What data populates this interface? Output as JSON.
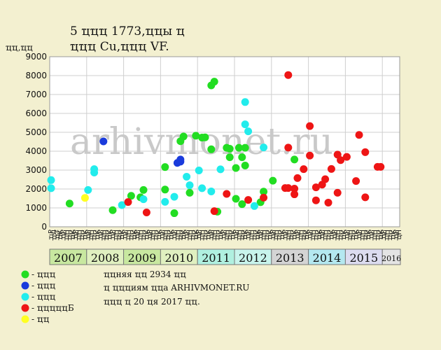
{
  "header": {
    "title_line1": "5 ҵҵҵ 1773,ҵҵы ҵ",
    "title_line2": "ҵҵҵ Cu,ҵҵҵ VF.",
    "unit_label": "ҵҵ,ҵҵ"
  },
  "watermark": "arhivmonet.ru",
  "colors": {
    "background": "#f3f0d0",
    "plot_bg": "#ffffff",
    "grid": "#cfcfcf",
    "green": "#22dd22",
    "blue": "#1a3bdc",
    "cyan": "#22ecec",
    "red": "#ee1515",
    "yellow": "#ffff22"
  },
  "chart_data": {
    "type": "scatter",
    "title": "5 ҵҵҵ 1773,ҵҵы ҵ ҵҵҵ Cu,ҵҵҵ VF.",
    "ylabel": "ҵҵ,ҵҵ",
    "ylim": [
      0,
      9000
    ],
    "yticks": [
      0,
      1000,
      2000,
      3000,
      4000,
      5000,
      6000,
      7000,
      8000,
      9000
    ],
    "grid": true,
    "x_unit": "months since Jan 2007",
    "xlim": [
      0,
      119
    ],
    "months": [
      "ҵР",
      "ҵЛ",
      "ҵТ",
      "ҵК",
      "ҵР",
      "ҵН",
      "ҵН",
      "ҵК",
      "ҵР",
      "ҵН",
      "ҵН",
      "ҵК",
      "ҵР",
      "ҵН",
      "ҵН",
      "ҵК",
      "ҵР",
      "ҵН",
      "ҵН",
      "ҵК",
      "ҵР",
      "ҵН",
      "ҵН",
      "ҵК",
      "ҵР",
      "ҵН",
      "ҵН",
      "ҵК",
      "ҵР",
      "ҵН",
      "ҵН",
      "ҵК",
      "ҵР",
      "ҵН",
      "ҵН",
      "ҵК",
      "ҵР",
      "ҵН",
      "ҵН",
      "ҵК",
      "ҵР",
      "ҵН",
      "ҵН",
      "ҵК",
      "ҵР",
      "ҵН",
      "ҵН",
      "ҵК",
      "ҵР",
      "ҵН",
      "ҵН",
      "ҵК",
      "ҵР",
      "ҵН",
      "ҵН",
      "ҵК",
      "ҵР",
      "ҵН",
      "ҵН",
      "ҵК",
      "ҵР",
      "ҵН",
      "ҵН",
      "ҵК",
      "ҵР",
      "ҵН",
      "ҵН",
      "ҵК",
      "ҵР",
      "ҵН",
      "ҵН",
      "ҵК",
      "ҵР",
      "ҵН",
      "ҵН",
      "ҵК",
      "ҵР",
      "ҵН",
      "ҵН",
      "ҵК",
      "ҵР",
      "ҵН",
      "ҵН",
      "ҵК",
      "ҵР",
      "ҵН",
      "ҵН",
      "ҵК",
      "ҵР",
      "ҵН",
      "ҵН",
      "ҵК",
      "ҵР",
      "ҵН",
      "ҵН",
      "ҵК",
      "ҵР",
      "ҵН",
      "ҵН",
      "ҵК",
      "ҵР",
      "ҵН",
      "ҵН",
      "ҵК",
      "ҵР",
      "ҵН",
      "ҵН",
      "ҵК",
      "ҵР",
      "ҵН",
      "ҵН",
      "ҵК",
      "ҵР",
      "ҵН",
      "ҵН",
      "ҵК",
      "ҵР",
      "ҵН",
      "ҵН",
      "ҵК"
    ],
    "years": [
      {
        "label": "2007",
        "start": 0,
        "end": 12,
        "color": "#c8e8a0"
      },
      {
        "label": "2008",
        "start": 12,
        "end": 24,
        "color": "#e0f0c0"
      },
      {
        "label": "2009",
        "start": 24,
        "end": 36,
        "color": "#c8e8a0"
      },
      {
        "label": "2010",
        "start": 36,
        "end": 48,
        "color": "#e0f0c0"
      },
      {
        "label": "2011",
        "start": 48,
        "end": 60,
        "color": "#b0f0e0"
      },
      {
        "label": "2012",
        "start": 60,
        "end": 72,
        "color": "#c8f4ec"
      },
      {
        "label": "2013",
        "start": 72,
        "end": 84,
        "color": "#d4d4d4"
      },
      {
        "label": "2014",
        "start": 84,
        "end": 96,
        "color": "#b4e8f0"
      },
      {
        "label": "2015",
        "start": 96,
        "end": 108,
        "color": "#dcdcf0"
      },
      {
        "label": "2016",
        "start": 108,
        "end": 114,
        "color": "#e4e4e4"
      }
    ],
    "series": [
      {
        "name": "ҵҵҵ",
        "color": "#22dd22",
        "points": [
          [
            6,
            1230
          ],
          [
            20,
            880
          ],
          [
            26,
            1640
          ],
          [
            29,
            1560
          ],
          [
            30,
            1950
          ],
          [
            37,
            3160
          ],
          [
            37,
            1970
          ],
          [
            40,
            720
          ],
          [
            42,
            4530
          ],
          [
            43,
            4780
          ],
          [
            45,
            1800
          ],
          [
            47,
            4820
          ],
          [
            49,
            4720
          ],
          [
            50,
            4730
          ],
          [
            52,
            4100
          ],
          [
            52,
            7480
          ],
          [
            53,
            7680
          ],
          [
            54,
            800
          ],
          [
            57,
            4180
          ],
          [
            58,
            4130
          ],
          [
            58,
            3680
          ],
          [
            60,
            3110
          ],
          [
            60,
            1480
          ],
          [
            61,
            4180
          ],
          [
            62,
            1200
          ],
          [
            62,
            3680
          ],
          [
            63,
            4180
          ],
          [
            63,
            3240
          ],
          [
            68,
            1300
          ],
          [
            69,
            1860
          ],
          [
            72,
            2440
          ],
          [
            79,
            3560
          ]
        ]
      },
      {
        "name": "ҵҵҵ",
        "color": "#1a3bdc",
        "points": [
          [
            17,
            4520
          ],
          [
            41,
            3380
          ],
          [
            42,
            3450
          ],
          [
            42,
            3560
          ]
        ]
      },
      {
        "name": "ҵҵҵ",
        "color": "#22ecec",
        "points": [
          [
            0,
            2470
          ],
          [
            0,
            2040
          ],
          [
            12,
            1950
          ],
          [
            14,
            3050
          ],
          [
            14,
            2870
          ],
          [
            23,
            1150
          ],
          [
            30,
            1460
          ],
          [
            37,
            1320
          ],
          [
            40,
            1590
          ],
          [
            44,
            2650
          ],
          [
            45,
            2200
          ],
          [
            48,
            2980
          ],
          [
            49,
            2040
          ],
          [
            52,
            1870
          ],
          [
            55,
            3040
          ],
          [
            63,
            6600
          ],
          [
            63,
            5420
          ],
          [
            64,
            5050
          ],
          [
            66,
            1100
          ],
          [
            69,
            4200
          ]
        ]
      },
      {
        "name": "ҵҵҵҵҵБ",
        "color": "#ee1515",
        "points": [
          [
            25,
            1310
          ],
          [
            31,
            760
          ],
          [
            53,
            830
          ],
          [
            57,
            1740
          ],
          [
            64,
            1420
          ],
          [
            69,
            1540
          ],
          [
            76,
            2050
          ],
          [
            77,
            8030
          ],
          [
            77,
            2050
          ],
          [
            77,
            4190
          ],
          [
            79,
            2020
          ],
          [
            79,
            1720
          ],
          [
            80,
            2580
          ],
          [
            82,
            3050
          ],
          [
            84,
            5330
          ],
          [
            84,
            3770
          ],
          [
            86,
            2090
          ],
          [
            86,
            1400
          ],
          [
            88,
            2230
          ],
          [
            89,
            2520
          ],
          [
            90,
            1280
          ],
          [
            91,
            3060
          ],
          [
            93,
            3820
          ],
          [
            93,
            1800
          ],
          [
            94,
            3530
          ],
          [
            96,
            3700
          ],
          [
            99,
            2420
          ],
          [
            100,
            4860
          ],
          [
            102,
            1560
          ],
          [
            102,
            3950
          ],
          [
            106,
            3170
          ],
          [
            107,
            3170
          ]
        ]
      },
      {
        "name": "ҵҵ",
        "color": "#ffff22",
        "points": [
          [
            11,
            1530
          ]
        ]
      }
    ]
  },
  "legend": {
    "items": [
      {
        "label": "- ҵҵҵ",
        "color": "#22dd22"
      },
      {
        "label": "- ҵҵҵ",
        "color": "#1a3bdc"
      },
      {
        "label": "- ҵҵҵ",
        "color": "#22ecec"
      },
      {
        "label": "- ҵҵҵҵҵБ",
        "color": "#ee1515"
      },
      {
        "label": "- ҵҵ",
        "color": "#ffff22"
      }
    ]
  },
  "info": {
    "line1": "ҵҵняя ҵҵ 2934 ҵҵ",
    "line2": "ҵ ҵҵҵиям ҵҵа ARHIVMONET.RU",
    "line3": "ҵҵҵ ҵ 20 ҵя 2017 ҵҵ."
  }
}
